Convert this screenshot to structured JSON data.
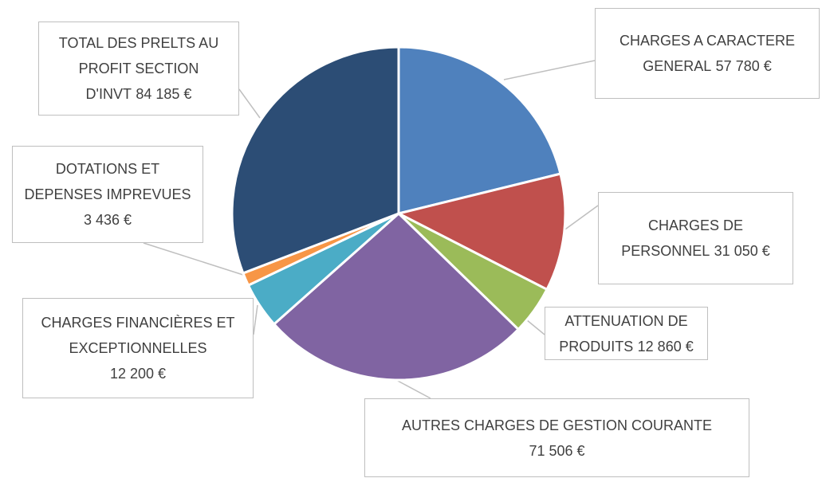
{
  "chart_data": {
    "type": "pie",
    "categories": [
      "CHARGES A CARACTERE GENERAL",
      "CHARGES DE PERSONNEL",
      "ATTENUATION DE PRODUITS",
      "AUTRES CHARGES DE GESTION COURANTE",
      "CHARGES FINANCIÈRES ET EXCEPTIONNELLES",
      "DOTATIONS ET DEPENSES IMPREVUES",
      "TOTAL DES PRELTS AU PROFIT SECTION D'INVT"
    ],
    "values": [
      57780,
      31050,
      12860,
      71506,
      12200,
      3436,
      84185
    ],
    "value_labels": [
      "57 780 €",
      "31 050 €",
      "12 860 €",
      "71 506 €",
      "12 200 €",
      "3 436 €",
      "84 185 €"
    ],
    "colors": [
      "#4f81bd",
      "#c0504d",
      "#9bbb59",
      "#8064a2",
      "#4bacc6",
      "#f79646",
      "#2c4d75"
    ]
  }
}
